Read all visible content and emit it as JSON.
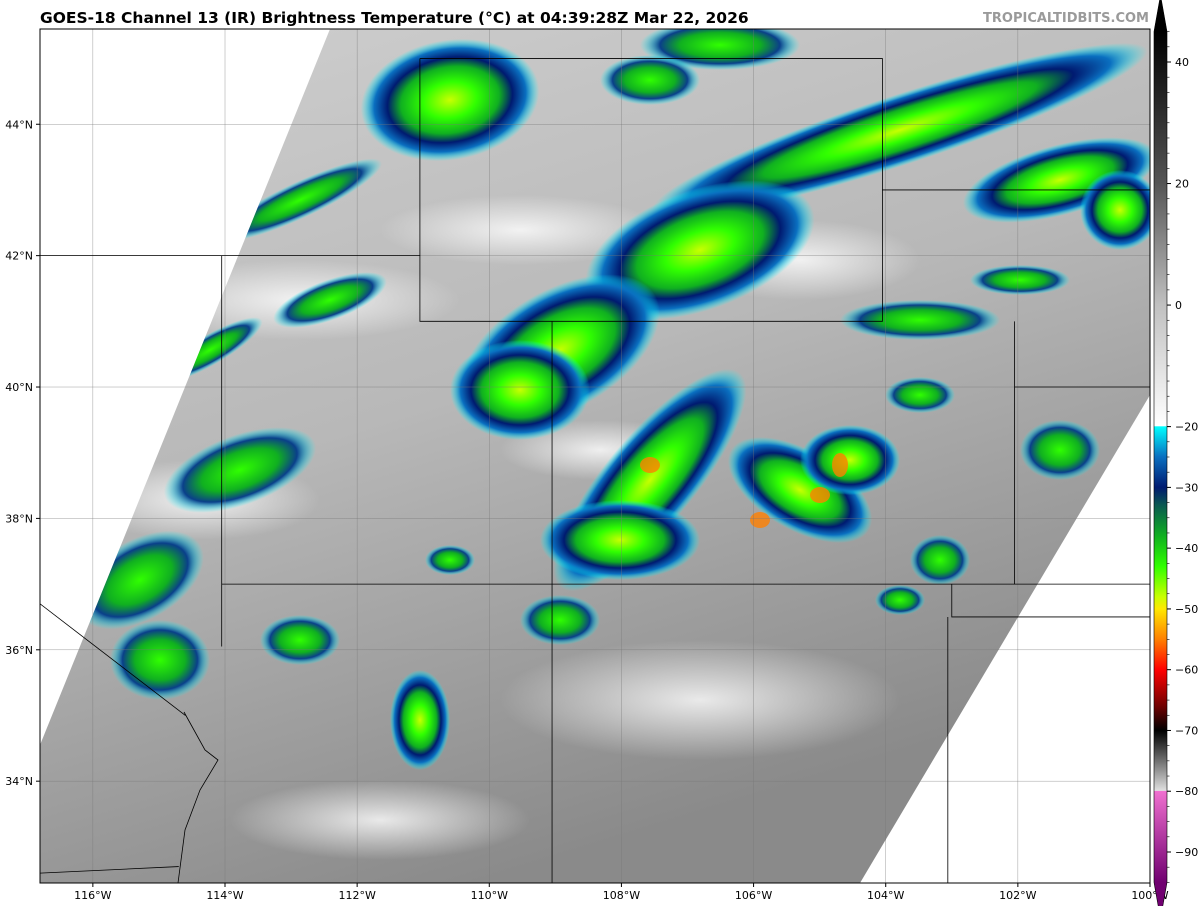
{
  "title": "GOES-18 Channel 13 (IR) Brightness Temperature (°C) at 04:39:28Z Mar 22, 2026",
  "watermark": "TROPICALTIDBITS.COM",
  "map": {
    "lon_range": [
      -116.8,
      -100
    ],
    "lat_range": [
      32.45,
      45.45
    ],
    "lon_ticks": [
      {
        "v": -116,
        "label": "116°W"
      },
      {
        "v": -114,
        "label": "114°W"
      },
      {
        "v": -112,
        "label": "112°W"
      },
      {
        "v": -110,
        "label": "110°W"
      },
      {
        "v": -108,
        "label": "108°W"
      },
      {
        "v": -106,
        "label": "106°W"
      },
      {
        "v": -104,
        "label": "104°W"
      },
      {
        "v": -102,
        "label": "102°W"
      },
      {
        "v": -100,
        "label": "100°W"
      }
    ],
    "lat_ticks": [
      {
        "v": 44,
        "label": "44°N"
      },
      {
        "v": 42,
        "label": "42°N"
      },
      {
        "v": 40,
        "label": "40°N"
      },
      {
        "v": 38,
        "label": "38°N"
      },
      {
        "v": 36,
        "label": "36°N"
      },
      {
        "v": 34,
        "label": "34°N"
      }
    ],
    "gridlines": true
  },
  "colorbar": {
    "range": [
      -90,
      40
    ],
    "extend": "both",
    "ticks": [
      {
        "v": 40,
        "label": "40"
      },
      {
        "v": 20,
        "label": "20"
      },
      {
        "v": 0,
        "label": "0"
      },
      {
        "v": -20,
        "label": "−20"
      },
      {
        "v": -30,
        "label": "−30"
      },
      {
        "v": -40,
        "label": "−40"
      },
      {
        "v": -50,
        "label": "−50"
      },
      {
        "v": -60,
        "label": "−60"
      },
      {
        "v": -70,
        "label": "−70"
      },
      {
        "v": -80,
        "label": "−80"
      },
      {
        "v": -90,
        "label": "−90"
      }
    ],
    "stops": [
      {
        "v": 45,
        "c": "#000000"
      },
      {
        "v": 20,
        "c": "#555555"
      },
      {
        "v": 0,
        "c": "#c0c0c0"
      },
      {
        "v": -19.9,
        "c": "#ffffff"
      },
      {
        "v": -20,
        "c": "#00ffff"
      },
      {
        "v": -25,
        "c": "#0a6fc0"
      },
      {
        "v": -30,
        "c": "#001a70"
      },
      {
        "v": -33,
        "c": "#0a5a50"
      },
      {
        "v": -38,
        "c": "#10b020"
      },
      {
        "v": -43,
        "c": "#30ff00"
      },
      {
        "v": -48,
        "c": "#c8ff00"
      },
      {
        "v": -50,
        "c": "#ffe800"
      },
      {
        "v": -55,
        "c": "#ff8000"
      },
      {
        "v": -60,
        "c": "#ff0000"
      },
      {
        "v": -66,
        "c": "#700000"
      },
      {
        "v": -70,
        "c": "#000000"
      },
      {
        "v": -75,
        "c": "#707070"
      },
      {
        "v": -79.9,
        "c": "#e0e0e0"
      },
      {
        "v": -80,
        "c": "#f070d0"
      },
      {
        "v": -95,
        "c": "#700070"
      }
    ]
  }
}
